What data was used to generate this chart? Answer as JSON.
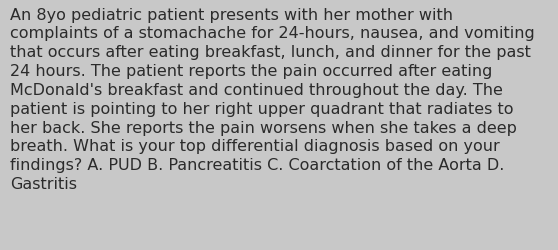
{
  "background_color": "#c8c8c8",
  "text_color": "#2b2b2b",
  "lines": [
    "An 8yo pediatric patient presents with her mother with",
    "complaints of a stomachache for 24-hours, nausea, and vomiting",
    "that occurs after eating breakfast, lunch, and dinner for the past",
    "24 hours. The patient reports the pain occurred after eating",
    "McDonald's breakfast and continued throughout the day. The",
    "patient is pointing to her right upper quadrant that radiates to",
    "her back. She reports the pain worsens when she takes a deep",
    "breath. What is your top differential diagnosis based on your",
    "findings? A. PUD B. Pancreatitis C. Coarctation of the Aorta D.",
    "Gastritis"
  ],
  "font_size": 11.5,
  "font_family": "DejaVu Sans",
  "fig_width": 5.58,
  "fig_height": 2.51,
  "dpi": 100
}
